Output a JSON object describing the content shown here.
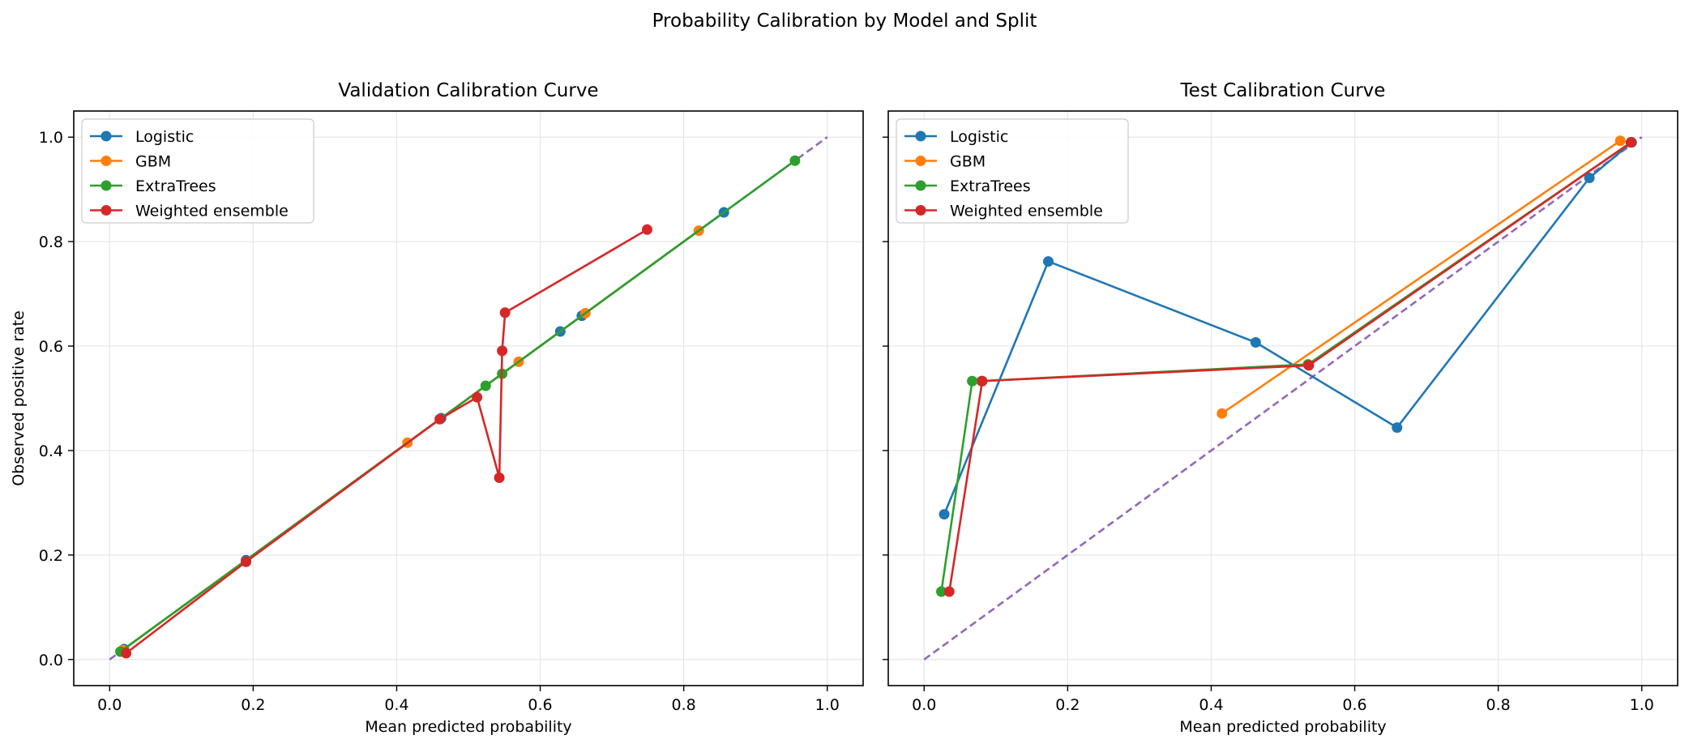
{
  "suptitle": "Probability Calibration by Model and Split",
  "chart_data": [
    {
      "type": "line",
      "title": "Validation Calibration Curve",
      "xlabel": "Mean predicted probability",
      "ylabel": "Observed positive rate",
      "xlim": [
        -0.05,
        1.05
      ],
      "ylim": [
        -0.05,
        1.05
      ],
      "xticks": [
        0.0,
        0.2,
        0.4,
        0.6,
        0.8,
        1.0
      ],
      "yticks": [
        0.0,
        0.2,
        0.4,
        0.6,
        0.8,
        1.0
      ],
      "xtick_labels": [
        "0.0",
        "0.2",
        "0.4",
        "0.6",
        "0.8",
        "1.0"
      ],
      "ytick_labels": [
        "0.0",
        "0.2",
        "0.4",
        "0.6",
        "0.8",
        "1.0"
      ],
      "grid": true,
      "legend_position": "top-left",
      "reference_line": {
        "x": [
          0,
          1
        ],
        "y": [
          0,
          1
        ],
        "style": "dashed",
        "color": "#9467bd"
      },
      "series": [
        {
          "name": "Logistic",
          "color": "#1f77b4",
          "x": [
            0.02,
            0.19,
            0.462,
            0.628,
            0.658,
            0.856
          ],
          "y": [
            0.02,
            0.19,
            0.462,
            0.628,
            0.658,
            0.856
          ]
        },
        {
          "name": "GBM",
          "color": "#ff7f0e",
          "x": [
            0.018,
            0.415,
            0.57,
            0.663,
            0.821
          ],
          "y": [
            0.018,
            0.415,
            0.57,
            0.663,
            0.821
          ]
        },
        {
          "name": "ExtraTrees",
          "color": "#2ca02c",
          "x": [
            0.015,
            0.524,
            0.547,
            0.955
          ],
          "y": [
            0.015,
            0.524,
            0.547,
            0.955
          ]
        },
        {
          "name": "Weighted ensemble",
          "color": "#d62728",
          "x": [
            0.023,
            0.19,
            0.46,
            0.512,
            0.543,
            0.547,
            0.551,
            0.749
          ],
          "y": [
            0.012,
            0.187,
            0.46,
            0.502,
            0.348,
            0.591,
            0.664,
            0.823
          ]
        }
      ]
    },
    {
      "type": "line",
      "title": "Test Calibration Curve",
      "xlabel": "Mean predicted probability",
      "ylabel": "",
      "xlim": [
        -0.05,
        1.05
      ],
      "ylim": [
        -0.05,
        1.05
      ],
      "xticks": [
        0.0,
        0.2,
        0.4,
        0.6,
        0.8,
        1.0
      ],
      "yticks": [
        0.0,
        0.2,
        0.4,
        0.6,
        0.8,
        1.0
      ],
      "xtick_labels": [
        "0.0",
        "0.2",
        "0.4",
        "0.6",
        "0.8",
        "1.0"
      ],
      "ytick_labels": [],
      "grid": true,
      "legend_position": "top-left",
      "reference_line": {
        "x": [
          0,
          1
        ],
        "y": [
          0,
          1
        ],
        "style": "dashed",
        "color": "#9467bd"
      },
      "series": [
        {
          "name": "Logistic",
          "color": "#1f77b4",
          "x": [
            0.028,
            0.173,
            0.462,
            0.659,
            0.927,
            0.986
          ],
          "y": [
            0.278,
            0.762,
            0.607,
            0.444,
            0.922,
            0.99
          ]
        },
        {
          "name": "GBM",
          "color": "#ff7f0e",
          "x": [
            0.415,
            0.97,
            0.985
          ],
          "y": [
            0.471,
            0.993,
            0.99
          ]
        },
        {
          "name": "ExtraTrees",
          "color": "#2ca02c",
          "x": [
            0.024,
            0.067,
            0.08,
            0.535,
            0.985
          ],
          "y": [
            0.13,
            0.533,
            0.533,
            0.565,
            0.99
          ]
        },
        {
          "name": "Weighted ensemble",
          "color": "#d62728",
          "x": [
            0.035,
            0.081,
            0.536,
            0.985
          ],
          "y": [
            0.13,
            0.533,
            0.563,
            0.99
          ]
        }
      ]
    }
  ]
}
